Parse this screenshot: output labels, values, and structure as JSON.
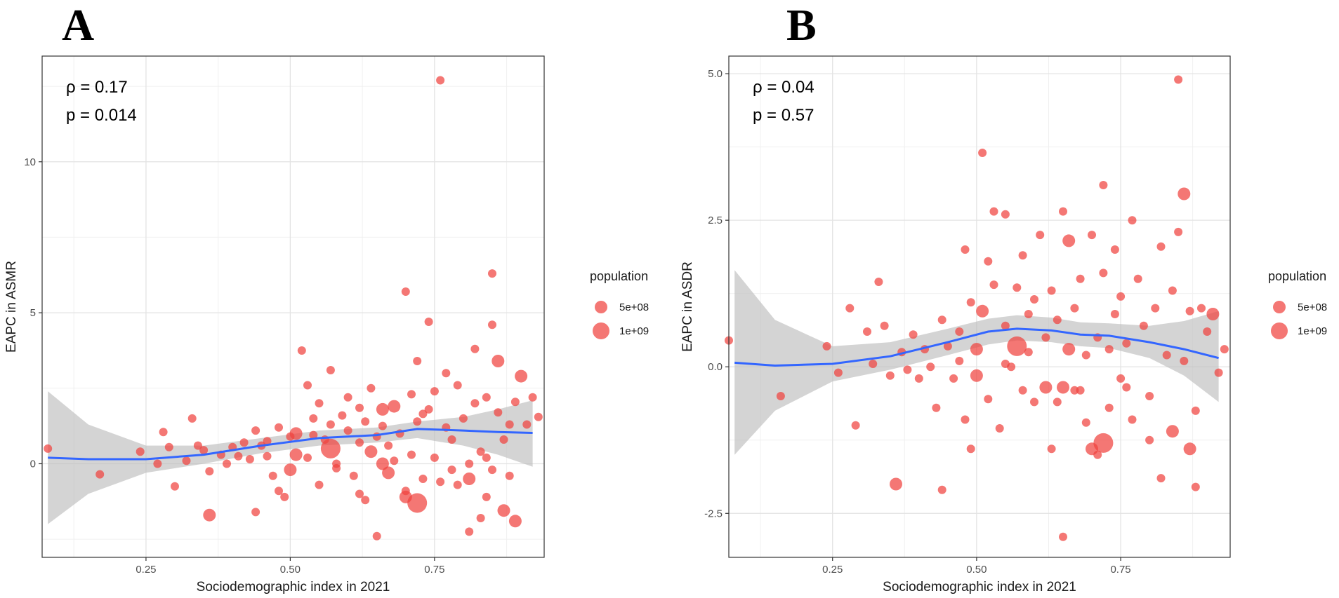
{
  "chart_data": [
    {
      "panel": "A",
      "type": "scatter",
      "xlabel": "Sociodemographic index in 2021",
      "ylabel": "EAPC in ASMR",
      "xlim": [
        0.07,
        0.94
      ],
      "ylim": [
        -3.1,
        13.5
      ],
      "xticks": [
        0.25,
        0.5,
        0.75
      ],
      "xtick_labels": [
        "0.25",
        "0.50",
        "0.75"
      ],
      "yticks": [
        0,
        5,
        10
      ],
      "ytick_labels": [
        "0",
        "5",
        "10"
      ],
      "annotations": [
        "ρ = 0.17",
        "p = 0.014"
      ],
      "smooth": {
        "x": [
          0.08,
          0.15,
          0.25,
          0.35,
          0.45,
          0.55,
          0.65,
          0.72,
          0.8,
          0.86,
          0.92
        ],
        "y": [
          0.2,
          0.15,
          0.15,
          0.3,
          0.6,
          0.85,
          0.95,
          1.15,
          1.1,
          1.05,
          1.02
        ],
        "lower": [
          -2.0,
          -1.0,
          -0.3,
          0.0,
          0.35,
          0.6,
          0.7,
          0.85,
          0.6,
          0.3,
          -0.1
        ],
        "upper": [
          2.4,
          1.3,
          0.6,
          0.6,
          0.85,
          1.1,
          1.2,
          1.4,
          1.55,
          1.8,
          2.1
        ]
      },
      "points": [
        [
          0.08,
          0.5,
          1
        ],
        [
          0.17,
          -0.35,
          1
        ],
        [
          0.24,
          0.4,
          1
        ],
        [
          0.27,
          0.0,
          1
        ],
        [
          0.28,
          1.05,
          1
        ],
        [
          0.29,
          0.55,
          1
        ],
        [
          0.3,
          -0.75,
          1
        ],
        [
          0.32,
          0.1,
          1
        ],
        [
          0.33,
          1.5,
          1
        ],
        [
          0.34,
          0.6,
          1
        ],
        [
          0.35,
          0.45,
          1
        ],
        [
          0.36,
          -0.25,
          1
        ],
        [
          0.36,
          -1.7,
          2
        ],
        [
          0.38,
          0.3,
          1
        ],
        [
          0.39,
          0.0,
          1
        ],
        [
          0.4,
          0.55,
          1
        ],
        [
          0.41,
          0.25,
          1
        ],
        [
          0.42,
          0.7,
          1
        ],
        [
          0.43,
          0.15,
          1
        ],
        [
          0.44,
          1.1,
          1
        ],
        [
          0.44,
          -1.6,
          1
        ],
        [
          0.45,
          0.6,
          1
        ],
        [
          0.46,
          0.25,
          1
        ],
        [
          0.47,
          -0.4,
          1
        ],
        [
          0.48,
          1.2,
          1
        ],
        [
          0.48,
          -0.9,
          1
        ],
        [
          0.49,
          -1.1,
          1
        ],
        [
          0.5,
          0.9,
          1
        ],
        [
          0.5,
          -0.2,
          2
        ],
        [
          0.51,
          0.3,
          2
        ],
        [
          0.51,
          1.0,
          2
        ],
        [
          0.52,
          3.75,
          1
        ],
        [
          0.53,
          2.6,
          1
        ],
        [
          0.53,
          0.2,
          1
        ],
        [
          0.54,
          1.5,
          1
        ],
        [
          0.55,
          -0.7,
          1
        ],
        [
          0.55,
          2.0,
          1
        ],
        [
          0.56,
          0.8,
          1
        ],
        [
          0.57,
          1.3,
          1
        ],
        [
          0.57,
          3.1,
          1
        ],
        [
          0.57,
          0.5,
          3
        ],
        [
          0.58,
          0.0,
          1
        ],
        [
          0.59,
          1.6,
          1
        ],
        [
          0.6,
          1.1,
          1
        ],
        [
          0.6,
          2.2,
          1
        ],
        [
          0.61,
          -0.4,
          1
        ],
        [
          0.62,
          0.7,
          1
        ],
        [
          0.62,
          -1.0,
          1
        ],
        [
          0.63,
          1.4,
          1
        ],
        [
          0.63,
          -1.2,
          1
        ],
        [
          0.64,
          0.4,
          2
        ],
        [
          0.64,
          2.5,
          1
        ],
        [
          0.65,
          0.9,
          1
        ],
        [
          0.65,
          -2.4,
          1
        ],
        [
          0.66,
          1.8,
          2
        ],
        [
          0.66,
          0.0,
          2
        ],
        [
          0.67,
          0.6,
          1
        ],
        [
          0.67,
          -0.3,
          2
        ],
        [
          0.68,
          1.9,
          2
        ],
        [
          0.69,
          1.0,
          1
        ],
        [
          0.7,
          5.7,
          1
        ],
        [
          0.7,
          -1.1,
          2
        ],
        [
          0.71,
          0.3,
          1
        ],
        [
          0.71,
          2.3,
          1
        ],
        [
          0.72,
          -1.3,
          3
        ],
        [
          0.72,
          3.4,
          1
        ],
        [
          0.72,
          1.4,
          1
        ],
        [
          0.73,
          -0.5,
          1
        ],
        [
          0.74,
          4.7,
          1
        ],
        [
          0.74,
          1.8,
          1
        ],
        [
          0.75,
          0.2,
          1
        ],
        [
          0.75,
          2.4,
          1
        ],
        [
          0.76,
          12.7,
          1
        ],
        [
          0.76,
          -0.6,
          1
        ],
        [
          0.77,
          3.0,
          1
        ],
        [
          0.77,
          1.2,
          1
        ],
        [
          0.78,
          0.8,
          1
        ],
        [
          0.79,
          2.6,
          1
        ],
        [
          0.79,
          -0.7,
          1
        ],
        [
          0.8,
          1.5,
          1
        ],
        [
          0.81,
          0.0,
          1
        ],
        [
          0.81,
          -2.25,
          1
        ],
        [
          0.81,
          -0.5,
          2
        ],
        [
          0.82,
          3.8,
          1
        ],
        [
          0.82,
          2.0,
          1
        ],
        [
          0.83,
          0.4,
          1
        ],
        [
          0.83,
          -1.8,
          1
        ],
        [
          0.84,
          2.2,
          1
        ],
        [
          0.84,
          0.2,
          1
        ],
        [
          0.85,
          6.3,
          1
        ],
        [
          0.85,
          4.6,
          1
        ],
        [
          0.85,
          -0.2,
          1
        ],
        [
          0.86,
          3.4,
          2
        ],
        [
          0.86,
          1.7,
          1
        ],
        [
          0.87,
          0.8,
          1
        ],
        [
          0.87,
          -1.55,
          2
        ],
        [
          0.88,
          -0.4,
          1
        ],
        [
          0.88,
          1.3,
          1
        ],
        [
          0.89,
          -1.9,
          2
        ],
        [
          0.89,
          2.05,
          1
        ],
        [
          0.9,
          2.9,
          2
        ],
        [
          0.91,
          1.3,
          1
        ],
        [
          0.92,
          2.2,
          1
        ],
        [
          0.93,
          1.55,
          1
        ],
        [
          0.73,
          1.65,
          1
        ],
        [
          0.68,
          0.1,
          1
        ],
        [
          0.58,
          -0.15,
          1
        ],
        [
          0.62,
          1.85,
          1
        ],
        [
          0.66,
          1.25,
          1
        ],
        [
          0.54,
          0.95,
          1
        ],
        [
          0.46,
          0.75,
          1
        ],
        [
          0.7,
          -0.9,
          1
        ],
        [
          0.78,
          -0.2,
          1
        ],
        [
          0.84,
          -1.1,
          1
        ]
      ],
      "legend": {
        "title": "population",
        "entries": [
          "5e+08",
          "1e+09"
        ]
      }
    },
    {
      "panel": "B",
      "type": "scatter",
      "xlabel": "Sociodemographic index in 2021",
      "ylabel": "EAPC in ASDR",
      "xlim": [
        0.07,
        0.94
      ],
      "ylim": [
        -3.25,
        5.3
      ],
      "xticks": [
        0.25,
        0.5,
        0.75
      ],
      "xtick_labels": [
        "0.25",
        "0.50",
        "0.75"
      ],
      "yticks": [
        -2.5,
        0,
        2.5,
        5
      ],
      "ytick_labels": [
        "-2.5",
        "0.0",
        "2.5",
        "5.0"
      ],
      "annotations": [
        "ρ = 0.04",
        "p = 0.57"
      ],
      "smooth": {
        "x": [
          0.08,
          0.15,
          0.25,
          0.35,
          0.45,
          0.52,
          0.57,
          0.63,
          0.68,
          0.73,
          0.8,
          0.86,
          0.92
        ],
        "y": [
          0.07,
          0.02,
          0.05,
          0.18,
          0.42,
          0.6,
          0.65,
          0.62,
          0.55,
          0.53,
          0.42,
          0.3,
          0.15
        ],
        "lower": [
          -1.5,
          -0.75,
          -0.25,
          -0.05,
          0.2,
          0.38,
          0.45,
          0.42,
          0.35,
          0.32,
          0.15,
          -0.15,
          -0.6
        ],
        "upper": [
          1.65,
          0.8,
          0.35,
          0.42,
          0.65,
          0.82,
          0.88,
          0.84,
          0.76,
          0.74,
          0.7,
          0.78,
          0.95
        ]
      },
      "points": [
        [
          0.07,
          0.45,
          1
        ],
        [
          0.16,
          -0.5,
          1
        ],
        [
          0.24,
          0.35,
          1
        ],
        [
          0.26,
          -0.1,
          1
        ],
        [
          0.28,
          1.0,
          1
        ],
        [
          0.29,
          -1.0,
          1
        ],
        [
          0.31,
          0.6,
          1
        ],
        [
          0.32,
          0.05,
          1
        ],
        [
          0.33,
          1.45,
          1
        ],
        [
          0.34,
          0.7,
          1
        ],
        [
          0.35,
          -0.15,
          1
        ],
        [
          0.36,
          -2.0,
          2
        ],
        [
          0.37,
          0.25,
          1
        ],
        [
          0.38,
          -0.05,
          1
        ],
        [
          0.39,
          0.55,
          1
        ],
        [
          0.4,
          -0.2,
          1
        ],
        [
          0.41,
          0.3,
          1
        ],
        [
          0.42,
          0.0,
          1
        ],
        [
          0.43,
          -0.7,
          1
        ],
        [
          0.44,
          -2.1,
          1
        ],
        [
          0.44,
          0.8,
          1
        ],
        [
          0.45,
          0.35,
          1
        ],
        [
          0.46,
          -0.2,
          1
        ],
        [
          0.47,
          0.1,
          1
        ],
        [
          0.48,
          2.0,
          1
        ],
        [
          0.48,
          -0.9,
          1
        ],
        [
          0.49,
          1.1,
          1
        ],
        [
          0.49,
          -1.4,
          1
        ],
        [
          0.5,
          -0.15,
          2
        ],
        [
          0.5,
          0.3,
          2
        ],
        [
          0.51,
          0.95,
          2
        ],
        [
          0.51,
          3.65,
          1
        ],
        [
          0.52,
          1.8,
          1
        ],
        [
          0.52,
          -0.55,
          1
        ],
        [
          0.53,
          2.65,
          1
        ],
        [
          0.53,
          1.4,
          1
        ],
        [
          0.54,
          -1.05,
          1
        ],
        [
          0.55,
          0.7,
          1
        ],
        [
          0.55,
          2.6,
          1
        ],
        [
          0.56,
          0.0,
          1
        ],
        [
          0.57,
          1.35,
          1
        ],
        [
          0.57,
          0.35,
          3
        ],
        [
          0.58,
          -0.4,
          1
        ],
        [
          0.58,
          1.9,
          1
        ],
        [
          0.59,
          0.9,
          1
        ],
        [
          0.6,
          -0.6,
          1
        ],
        [
          0.6,
          1.15,
          1
        ],
        [
          0.61,
          2.25,
          1
        ],
        [
          0.62,
          -0.35,
          2
        ],
        [
          0.62,
          0.5,
          1
        ],
        [
          0.63,
          1.3,
          1
        ],
        [
          0.63,
          -1.4,
          1
        ],
        [
          0.64,
          0.8,
          1
        ],
        [
          0.65,
          2.65,
          1
        ],
        [
          0.65,
          -2.9,
          1
        ],
        [
          0.65,
          -0.35,
          2
        ],
        [
          0.66,
          0.3,
          2
        ],
        [
          0.66,
          2.15,
          2
        ],
        [
          0.67,
          1.0,
          1
        ],
        [
          0.67,
          -0.4,
          1
        ],
        [
          0.68,
          1.5,
          1
        ],
        [
          0.69,
          0.2,
          1
        ],
        [
          0.7,
          -1.4,
          2
        ],
        [
          0.7,
          2.25,
          1
        ],
        [
          0.71,
          -1.5,
          1
        ],
        [
          0.71,
          0.5,
          1
        ],
        [
          0.72,
          -1.3,
          3
        ],
        [
          0.72,
          3.1,
          1
        ],
        [
          0.72,
          1.6,
          1
        ],
        [
          0.73,
          -0.7,
          1
        ],
        [
          0.74,
          0.9,
          1
        ],
        [
          0.74,
          2.0,
          1
        ],
        [
          0.75,
          -0.2,
          1
        ],
        [
          0.75,
          1.2,
          1
        ],
        [
          0.76,
          0.4,
          1
        ],
        [
          0.77,
          2.5,
          1
        ],
        [
          0.77,
          -0.9,
          1
        ],
        [
          0.78,
          1.5,
          1
        ],
        [
          0.79,
          0.7,
          1
        ],
        [
          0.8,
          -0.5,
          1
        ],
        [
          0.81,
          1.0,
          1
        ],
        [
          0.82,
          2.05,
          1
        ],
        [
          0.82,
          -1.9,
          1
        ],
        [
          0.83,
          0.2,
          1
        ],
        [
          0.84,
          1.3,
          1
        ],
        [
          0.84,
          -1.1,
          2
        ],
        [
          0.85,
          4.9,
          1
        ],
        [
          0.85,
          2.3,
          1
        ],
        [
          0.86,
          2.95,
          2
        ],
        [
          0.86,
          0.1,
          1
        ],
        [
          0.87,
          -1.4,
          2
        ],
        [
          0.87,
          0.95,
          1
        ],
        [
          0.88,
          -0.75,
          1
        ],
        [
          0.88,
          -2.05,
          1
        ],
        [
          0.89,
          1.0,
          1
        ],
        [
          0.9,
          0.6,
          1
        ],
        [
          0.91,
          0.9,
          2
        ],
        [
          0.92,
          -0.1,
          1
        ],
        [
          0.93,
          0.3,
          1
        ],
        [
          0.69,
          -0.95,
          1
        ],
        [
          0.59,
          0.25,
          1
        ],
        [
          0.64,
          -0.6,
          1
        ],
        [
          0.76,
          -0.35,
          1
        ],
        [
          0.8,
          -1.25,
          1
        ],
        [
          0.55,
          0.05,
          1
        ],
        [
          0.47,
          0.6,
          1
        ],
        [
          0.68,
          -0.4,
          1
        ],
        [
          0.73,
          0.3,
          1
        ]
      ],
      "legend": {
        "title": "population",
        "entries": [
          "5e+08",
          "1e+09"
        ]
      }
    }
  ],
  "panel_letters": [
    "A",
    "B"
  ]
}
